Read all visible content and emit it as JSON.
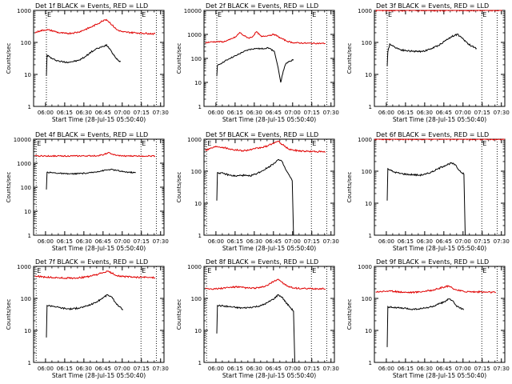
{
  "figure": {
    "panel_title_suffix": "BLACK = Events, RED = LLD",
    "xlabel": "Start Time (28-Jul-15 05:50:40)",
    "ylabel": "Counts/sec",
    "x_ticks": [
      "06:00",
      "06:15",
      "06:30",
      "06:45",
      "07:00",
      "07:15",
      "07:30"
    ],
    "y_ticks": [
      "1",
      "10",
      "100",
      "1000"
    ],
    "colors": {
      "events": "#000000",
      "lld": "#e00000",
      "axis": "#000000"
    }
  },
  "chart_data": [
    {
      "type": "line",
      "panel_label": "Det 1f",
      "title": "Det 1f BLACK = Events, RED = LLD",
      "xlabel": "Start Time (28-Jul-15 05:50:40)",
      "ylabel": "Counts/sec",
      "x_unit": "minutes after 05:50:40",
      "xlim": [
        0,
        102
      ],
      "ylim": [
        1,
        1000
      ],
      "yscale": "log",
      "x_ticks": [
        "06:00",
        "06:15",
        "06:30",
        "06:45",
        "07:00",
        "07:15",
        "07:30"
      ],
      "y_ticks": [
        1,
        10,
        100,
        1000
      ],
      "markers": [
        {
          "label": "E",
          "x": 10
        },
        {
          "label": "E",
          "x": 84
        }
      ],
      "series": [
        {
          "name": "Events",
          "color": "#000000",
          "x": [
            10,
            10.5,
            15,
            20,
            25,
            30,
            35,
            40,
            45,
            50,
            55,
            57,
            60,
            65,
            68
          ],
          "y": [
            9,
            40,
            30,
            26,
            24,
            25,
            27,
            35,
            50,
            65,
            75,
            85,
            60,
            30,
            25
          ]
        },
        {
          "name": "LLD",
          "color": "#e00000",
          "x": [
            1,
            5,
            10,
            15,
            20,
            25,
            30,
            35,
            40,
            45,
            50,
            55,
            57,
            60,
            65,
            70,
            80,
            90,
            95
          ],
          "y": [
            200,
            230,
            250,
            230,
            200,
            190,
            195,
            210,
            250,
            300,
            380,
            500,
            520,
            400,
            250,
            210,
            200,
            190,
            185
          ]
        }
      ]
    },
    {
      "type": "line",
      "panel_label": "Det 2f",
      "title": "Det 2f BLACK = Events, RED = LLD",
      "xlabel": "Start Time (28-Jul-15 05:50:40)",
      "ylabel": "Counts/sec",
      "x_unit": "minutes after 05:50:40",
      "xlim": [
        0,
        102
      ],
      "ylim": [
        1,
        10000
      ],
      "yscale": "log",
      "x_ticks": [
        "06:00",
        "06:15",
        "06:30",
        "06:45",
        "07:00",
        "07:15",
        "07:30"
      ],
      "y_ticks": [
        1,
        10,
        100,
        1000,
        10000
      ],
      "markers": [
        {
          "label": "E",
          "x": 10
        },
        {
          "label": "E",
          "x": 84
        }
      ],
      "series": [
        {
          "name": "Events",
          "color": "#000000",
          "x": [
            10,
            10.5,
            15,
            20,
            25,
            30,
            35,
            40,
            45,
            50,
            55,
            58,
            60,
            62,
            64,
            66,
            70
          ],
          "y": [
            18,
            50,
            70,
            100,
            130,
            180,
            230,
            260,
            250,
            280,
            200,
            40,
            10,
            30,
            60,
            70,
            90
          ]
        },
        {
          "name": "LLD",
          "color": "#e00000",
          "x": [
            1,
            5,
            10,
            15,
            20,
            25,
            28,
            31,
            35,
            38,
            41,
            45,
            50,
            55,
            60,
            65,
            70,
            80,
            95
          ],
          "y": [
            450,
            480,
            500,
            490,
            600,
            800,
            1200,
            900,
            700,
            800,
            1300,
            800,
            900,
            1000,
            700,
            520,
            450,
            430,
            420
          ]
        }
      ]
    },
    {
      "type": "line",
      "panel_label": "Det 3f",
      "title": "Det 3f BLACK = Events, RED = LLD",
      "xlabel": "Start Time (28-Jul-15 05:50:40)",
      "ylabel": "Counts/sec",
      "x_unit": "minutes after 05:50:40",
      "xlim": [
        0,
        102
      ],
      "ylim": [
        1,
        1000
      ],
      "yscale": "log",
      "x_ticks": [
        "06:00",
        "06:15",
        "06:30",
        "06:45",
        "07:00",
        "07:15",
        "07:30"
      ],
      "y_ticks": [
        1,
        10,
        100,
        1000
      ],
      "markers": [
        {
          "label": "E",
          "x": 10
        },
        {
          "label": "E",
          "x": 84
        }
      ],
      "series": [
        {
          "name": "Events",
          "color": "#000000",
          "x": [
            10,
            10.5,
            12,
            15,
            20,
            25,
            30,
            35,
            40,
            45,
            50,
            55,
            60,
            65,
            70,
            75,
            80
          ],
          "y": [
            18,
            50,
            90,
            75,
            60,
            55,
            53,
            52,
            55,
            65,
            80,
            110,
            150,
            180,
            120,
            80,
            65
          ]
        },
        {
          "name": "LLD",
          "color": "#e00000",
          "x": [
            1,
            20,
            40,
            60,
            80,
            100
          ],
          "y": [
            1000,
            1000,
            1000,
            1000,
            1000,
            1000
          ]
        }
      ]
    },
    {
      "type": "line",
      "panel_label": "Det 4f",
      "title": "Det 4f BLACK = Events, RED = LLD",
      "xlabel": "Start Time (28-Jul-15 05:50:40)",
      "ylabel": "Counts/sec",
      "x_unit": "minutes after 05:50:40",
      "xlim": [
        0,
        102
      ],
      "ylim": [
        1,
        10000
      ],
      "yscale": "log",
      "x_ticks": [
        "06:00",
        "06:15",
        "06:30",
        "06:45",
        "07:00",
        "07:15",
        "07:30"
      ],
      "y_ticks": [
        1,
        10,
        100,
        1000,
        10000
      ],
      "markers": [
        {
          "label": "E",
          "x": 2
        },
        {
          "label": "E",
          "x": 84
        }
      ],
      "series": [
        {
          "name": "Events",
          "color": "#000000",
          "x": [
            10,
            10.5,
            15,
            20,
            25,
            30,
            35,
            40,
            45,
            50,
            55,
            60,
            65,
            70,
            80
          ],
          "y": [
            80,
            420,
            400,
            380,
            360,
            360,
            370,
            380,
            400,
            450,
            500,
            550,
            500,
            440,
            400
          ]
        },
        {
          "name": "LLD",
          "color": "#e00000",
          "x": [
            1,
            10,
            20,
            30,
            40,
            50,
            55,
            58,
            60,
            62,
            65,
            70,
            80,
            95
          ],
          "y": [
            2000,
            2000,
            2000,
            2000,
            2000,
            2050,
            2300,
            2700,
            2600,
            2300,
            2100,
            2000,
            2000,
            2000
          ]
        }
      ]
    },
    {
      "type": "line",
      "panel_label": "Det 5f",
      "title": "Det 5f BLACK = Events, RED = LLD",
      "xlabel": "Start Time (28-Jul-15 05:50:40)",
      "ylabel": "Counts/sec",
      "x_unit": "minutes after 05:50:40",
      "xlim": [
        0,
        102
      ],
      "ylim": [
        1,
        1000
      ],
      "yscale": "log",
      "x_ticks": [
        "06:00",
        "06:15",
        "06:30",
        "06:45",
        "07:00",
        "07:15",
        "07:30"
      ],
      "y_ticks": [
        1,
        10,
        100,
        1000
      ],
      "markers": [
        {
          "label": "E",
          "x": 2
        },
        {
          "label": "E",
          "x": 84
        }
      ],
      "series": [
        {
          "name": "Events",
          "color": "#000000",
          "x": [
            10,
            10.5,
            15,
            20,
            25,
            30,
            35,
            40,
            45,
            50,
            55,
            58,
            61,
            64,
            67,
            69,
            70
          ],
          "y": [
            12,
            90,
            85,
            75,
            70,
            75,
            70,
            80,
            100,
            130,
            180,
            230,
            200,
            110,
            70,
            50,
            1
          ]
        },
        {
          "name": "LLD",
          "color": "#e00000",
          "x": [
            1,
            5,
            10,
            15,
            20,
            25,
            30,
            35,
            40,
            45,
            50,
            55,
            58,
            60,
            63,
            66,
            70,
            80,
            95
          ],
          "y": [
            450,
            520,
            600,
            560,
            500,
            460,
            440,
            460,
            500,
            550,
            620,
            780,
            850,
            750,
            600,
            500,
            450,
            420,
            400
          ]
        }
      ]
    },
    {
      "type": "line",
      "panel_label": "Det 6f",
      "title": "Det 6f BLACK = Events, RED = LLD",
      "xlabel": "Start Time (28-Jul-15 05:50:40)",
      "ylabel": "Counts/sec",
      "x_unit": "minutes after 05:50:40",
      "xlim": [
        0,
        102
      ],
      "ylim": [
        1,
        1000
      ],
      "yscale": "log",
      "x_ticks": [
        "06:00",
        "06:15",
        "06:30",
        "06:45",
        "07:00",
        "07:15",
        "07:30"
      ],
      "y_ticks": [
        1,
        10,
        100,
        1000
      ],
      "markers": [
        {
          "label": "E",
          "x": 84
        }
      ],
      "series": [
        {
          "name": "Events",
          "color": "#000000",
          "x": [
            10,
            10.5,
            12,
            15,
            20,
            25,
            30,
            35,
            40,
            45,
            50,
            55,
            60,
            63,
            66,
            70,
            71
          ],
          "y": [
            12,
            120,
            110,
            95,
            85,
            80,
            78,
            75,
            80,
            95,
            120,
            150,
            180,
            160,
            110,
            80,
            1
          ]
        },
        {
          "name": "LLD",
          "color": "#e00000",
          "x": [
            0,
            50,
            102
          ],
          "y": [
            1000,
            1000,
            1000
          ]
        }
      ]
    },
    {
      "type": "line",
      "panel_label": "Det 7f",
      "title": "Det 7f BLACK = Events, RED = LLD",
      "xlabel": "Start Time (28-Jul-15 05:50:40)",
      "ylabel": "Counts/sec",
      "x_unit": "minutes after 05:50:40",
      "xlim": [
        0,
        102
      ],
      "ylim": [
        1,
        1000
      ],
      "yscale": "log",
      "x_ticks": [
        "06:00",
        "06:15",
        "06:30",
        "06:45",
        "07:00",
        "07:15",
        "07:30"
      ],
      "y_ticks": [
        1,
        10,
        100,
        1000
      ],
      "markers": [
        {
          "label": "E",
          "x": 2
        },
        {
          "label": "E",
          "x": 84
        }
      ],
      "series": [
        {
          "name": "Events",
          "color": "#000000",
          "x": [
            10,
            10.5,
            15,
            20,
            25,
            30,
            35,
            40,
            45,
            50,
            55,
            58,
            61,
            64,
            67,
            70
          ],
          "y": [
            6,
            60,
            58,
            52,
            48,
            47,
            50,
            55,
            65,
            80,
            110,
            130,
            110,
            75,
            55,
            45
          ]
        },
        {
          "name": "LLD",
          "color": "#e00000",
          "x": [
            1,
            5,
            10,
            15,
            20,
            25,
            30,
            35,
            40,
            45,
            50,
            55,
            58,
            61,
            65,
            70,
            80,
            95
          ],
          "y": [
            500,
            480,
            460,
            450,
            440,
            430,
            430,
            440,
            460,
            500,
            560,
            650,
            700,
            620,
            520,
            480,
            460,
            450
          ]
        }
      ]
    },
    {
      "type": "line",
      "panel_label": "Det 8f",
      "title": "Det 8f BLACK = Events, RED = LLD",
      "xlabel": "Start Time (28-Jul-15 05:50:40)",
      "ylabel": "Counts/sec",
      "x_unit": "minutes after 05:50:40",
      "xlim": [
        0,
        102
      ],
      "ylim": [
        1,
        1000
      ],
      "yscale": "log",
      "x_ticks": [
        "06:00",
        "06:15",
        "06:30",
        "06:45",
        "07:00",
        "07:15",
        "07:30"
      ],
      "y_ticks": [
        1,
        10,
        100,
        1000
      ],
      "markers": [
        {
          "label": "E",
          "x": 2
        },
        {
          "label": "E",
          "x": 84
        }
      ],
      "series": [
        {
          "name": "Events",
          "color": "#000000",
          "x": [
            10,
            10.5,
            15,
            20,
            25,
            30,
            35,
            40,
            45,
            50,
            55,
            58,
            61,
            64,
            67,
            70,
            71
          ],
          "y": [
            8,
            60,
            58,
            55,
            52,
            50,
            52,
            55,
            60,
            75,
            100,
            130,
            110,
            75,
            55,
            40,
            1
          ]
        },
        {
          "name": "LLD",
          "color": "#e00000",
          "x": [
            1,
            5,
            10,
            15,
            20,
            25,
            30,
            35,
            40,
            45,
            50,
            55,
            58,
            61,
            65,
            70,
            80,
            95
          ],
          "y": [
            210,
            200,
            200,
            210,
            220,
            230,
            220,
            210,
            210,
            220,
            260,
            350,
            400,
            320,
            240,
            210,
            200,
            200
          ]
        }
      ]
    },
    {
      "type": "line",
      "panel_label": "Det 9f",
      "title": "Det 9f BLACK = Events, RED = LLD",
      "xlabel": "Start Time (28-Jul-15 05:50:40)",
      "ylabel": "Counts/sec",
      "x_unit": "minutes after 05:50:40",
      "xlim": [
        0,
        102
      ],
      "ylim": [
        1,
        1000
      ],
      "yscale": "log",
      "x_ticks": [
        "06:00",
        "06:15",
        "06:30",
        "06:45",
        "07:00",
        "07:15",
        "07:30"
      ],
      "y_ticks": [
        1,
        10,
        100,
        1000
      ],
      "markers": [
        {
          "label": "E",
          "x": 84
        }
      ],
      "series": [
        {
          "name": "Events",
          "color": "#000000",
          "x": [
            10,
            10.5,
            15,
            20,
            25,
            30,
            35,
            40,
            45,
            50,
            55,
            58,
            61,
            64,
            67,
            70
          ],
          "y": [
            3,
            55,
            52,
            50,
            48,
            46,
            47,
            50,
            55,
            65,
            80,
            95,
            85,
            60,
            50,
            45
          ]
        },
        {
          "name": "LLD",
          "color": "#e00000",
          "x": [
            1,
            5,
            10,
            15,
            20,
            25,
            30,
            35,
            40,
            45,
            50,
            55,
            58,
            61,
            65,
            70,
            80,
            95
          ],
          "y": [
            160,
            165,
            170,
            165,
            160,
            155,
            155,
            160,
            170,
            180,
            200,
            230,
            240,
            210,
            180,
            165,
            160,
            155
          ]
        }
      ]
    }
  ]
}
